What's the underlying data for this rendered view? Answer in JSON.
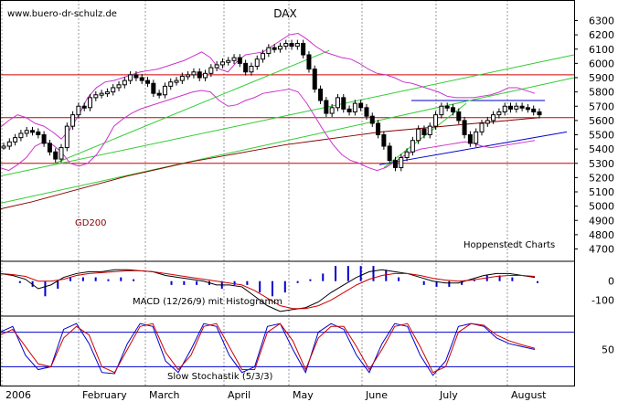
{
  "watermark": "www.buero-dr-schulz.de",
  "title": "DAX",
  "source": "Hoppenstedt Charts",
  "colors": {
    "price": "#000000",
    "bollinger": "#cc33cc",
    "resistance": "#cc0000",
    "uptrend": "#33cc33",
    "channel": "#0000cc",
    "gd200": "#880000",
    "macd": "#000000",
    "signal": "#cc0000",
    "histogram": "#0000cc",
    "stoch_k": "#0000cc",
    "stoch_d": "#cc0000",
    "grid": "#999999"
  },
  "chart_data": [
    {
      "type": "line",
      "name": "price-panel",
      "title": "DAX",
      "x_labels": [
        "2006",
        "February",
        "March",
        "April",
        "May",
        "June",
        "July",
        "August"
      ],
      "y_ticks": [
        4700,
        4800,
        4900,
        5000,
        5100,
        5200,
        5300,
        5400,
        5500,
        5600,
        5700,
        5800,
        5900,
        6000,
        6100,
        6200,
        6300
      ],
      "ylim": [
        4620,
        6380
      ],
      "grid": true,
      "series": [
        {
          "name": "DAX",
          "style": "candlestick-approx",
          "values": [
            5420,
            5450,
            5480,
            5510,
            5530,
            5520,
            5500,
            5440,
            5380,
            5330,
            5410,
            5560,
            5640,
            5700,
            5690,
            5760,
            5780,
            5790,
            5800,
            5830,
            5850,
            5880,
            5920,
            5900,
            5880,
            5860,
            5790,
            5780,
            5840,
            5870,
            5880,
            5910,
            5920,
            5940,
            5900,
            5930,
            5970,
            5990,
            6010,
            6020,
            6040,
            6000,
            5940,
            5980,
            6030,
            6070,
            6110,
            6100,
            6120,
            6140,
            6120,
            6140,
            6060,
            5960,
            5820,
            5740,
            5650,
            5690,
            5760,
            5680,
            5660,
            5720,
            5690,
            5630,
            5580,
            5500,
            5420,
            5320,
            5270,
            5340,
            5380,
            5460,
            5540,
            5500,
            5560,
            5640,
            5700,
            5690,
            5660,
            5600,
            5500,
            5440,
            5520,
            5580,
            5600,
            5640,
            5660,
            5700,
            5680,
            5700,
            5690,
            5680,
            5660,
            5640
          ]
        },
        {
          "name": "Bollinger upper",
          "values": [
            5550,
            5600,
            5640,
            5620,
            5580,
            5560,
            5520,
            5470,
            5540,
            5640,
            5760,
            5830,
            5870,
            5880,
            5900,
            5920,
            5940,
            5950,
            5960,
            5980,
            6000,
            6020,
            6050,
            6080,
            6040,
            5960,
            5940,
            6010,
            6060,
            6070,
            6080,
            6120,
            6160,
            6200,
            6210,
            6170,
            6120,
            6080,
            6060,
            6040,
            6030,
            6000,
            5960,
            5930,
            5920,
            5900,
            5870,
            5860,
            5840,
            5820,
            5800,
            5770,
            5760,
            5760,
            5760,
            5770,
            5780,
            5800,
            5830,
            5830,
            5810,
            5790
          ]
        },
        {
          "name": "Bollinger lower",
          "values": [
            5270,
            5250,
            5290,
            5340,
            5420,
            5450,
            5430,
            5380,
            5300,
            5280,
            5300,
            5360,
            5450,
            5560,
            5610,
            5650,
            5680,
            5700,
            5720,
            5740,
            5760,
            5780,
            5800,
            5810,
            5800,
            5740,
            5700,
            5710,
            5740,
            5760,
            5790,
            5800,
            5810,
            5820,
            5800,
            5720,
            5620,
            5520,
            5430,
            5360,
            5320,
            5300,
            5270,
            5250,
            5270,
            5310,
            5350,
            5380,
            5400,
            5410,
            5420,
            5430,
            5440,
            5450,
            5440,
            5420,
            5410,
            5420,
            5430,
            5440,
            5450,
            5460
          ]
        },
        {
          "name": "Trend line (upper green)",
          "points": [
            [
              0,
              5210
            ],
            [
              1,
              6060
            ]
          ]
        },
        {
          "name": "Trend line (lower green)",
          "points": [
            [
              0,
              5020
            ],
            [
              1,
              5900
            ]
          ]
        },
        {
          "name": "Resistance",
          "values": [
            5920,
            5620,
            5300
          ]
        },
        {
          "name": "Range top (blue)",
          "values": [
            5740
          ]
        },
        {
          "name": "GD200",
          "label": "GD200",
          "values": [
            4980,
            5030,
            5090,
            5150,
            5210,
            5260,
            5310,
            5350,
            5390,
            5430,
            5460,
            5490,
            5520,
            5540,
            5560,
            5580,
            5600,
            5620
          ]
        }
      ]
    },
    {
      "type": "line",
      "name": "macd-panel",
      "label": "MACD (12/26/9) mit Histogramm",
      "y_ticks": [
        0,
        -100
      ],
      "series": [
        {
          "name": "MACD",
          "values": [
            40,
            30,
            10,
            -40,
            -20,
            20,
            40,
            50,
            50,
            60,
            60,
            55,
            50,
            30,
            20,
            10,
            0,
            -20,
            -20,
            -30,
            -80,
            -130,
            -160,
            -150,
            -140,
            -110,
            -60,
            -20,
            20,
            50,
            60,
            50,
            40,
            20,
            0,
            -10,
            -10,
            10,
            30,
            40,
            40,
            30,
            20
          ]
        },
        {
          "name": "Signal",
          "values": [
            40,
            35,
            25,
            0,
            0,
            10,
            30,
            40,
            45,
            50,
            55,
            55,
            50,
            40,
            30,
            20,
            10,
            0,
            -10,
            -20,
            -50,
            -90,
            -130,
            -145,
            -145,
            -130,
            -100,
            -60,
            -20,
            10,
            30,
            40,
            40,
            30,
            15,
            5,
            0,
            5,
            15,
            25,
            30,
            30,
            25
          ]
        },
        {
          "name": "Histogram",
          "values": [
            0,
            -5,
            -15,
            -40,
            -20,
            10,
            10,
            10,
            5,
            10,
            5,
            0,
            0,
            -10,
            -10,
            -10,
            -10,
            -20,
            -10,
            -10,
            -30,
            -40,
            -30,
            -5,
            5,
            20,
            40,
            40,
            40,
            40,
            30,
            10,
            0,
            -10,
            -15,
            -15,
            -10,
            5,
            15,
            15,
            10,
            0,
            -5
          ]
        }
      ]
    },
    {
      "type": "line",
      "name": "stochastic-panel",
      "label": "Slow Stochastik (5/3/3)",
      "y_ticks": [
        50
      ],
      "ylim": [
        0,
        100
      ],
      "series": [
        {
          "name": "%K",
          "values": [
            80,
            90,
            40,
            15,
            20,
            85,
            95,
            60,
            10,
            8,
            60,
            95,
            90,
            30,
            10,
            50,
            95,
            90,
            40,
            10,
            20,
            90,
            95,
            50,
            10,
            80,
            95,
            85,
            40,
            10,
            60,
            95,
            90,
            40,
            5,
            30,
            90,
            95,
            90,
            70,
            60,
            55,
            50
          ]
        },
        {
          "name": "%D",
          "values": [
            75,
            85,
            55,
            25,
            20,
            70,
            90,
            75,
            20,
            10,
            50,
            90,
            95,
            45,
            15,
            40,
            90,
            95,
            55,
            15,
            15,
            80,
            95,
            65,
            15,
            70,
            90,
            90,
            55,
            15,
            50,
            90,
            95,
            55,
            10,
            20,
            80,
            95,
            92,
            75,
            65,
            58,
            52
          ]
        }
      ]
    }
  ]
}
